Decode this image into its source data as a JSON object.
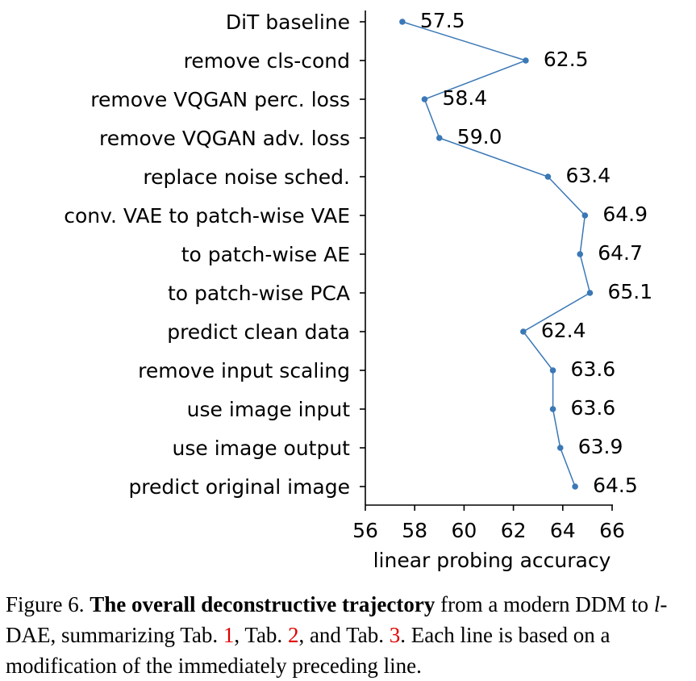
{
  "chart_data": {
    "type": "line",
    "orientation": "horizontal",
    "categories": [
      "DiT baseline",
      "remove cls-cond",
      "remove VQGAN perc. loss",
      "remove VQGAN adv. loss",
      "replace noise sched.",
      "conv. VAE to patch-wise VAE",
      "to patch-wise AE",
      "to patch-wise PCA",
      "predict clean data",
      "remove input scaling",
      "use image input",
      "use image output",
      "predict original image"
    ],
    "values": [
      57.5,
      62.5,
      58.4,
      59.0,
      63.4,
      64.9,
      64.7,
      65.1,
      62.4,
      63.6,
      63.6,
      63.9,
      64.5
    ],
    "value_labels": [
      "57.5",
      "62.5",
      "58.4",
      "59.0",
      "63.4",
      "64.9",
      "64.7",
      "65.1",
      "62.4",
      "63.6",
      "63.6",
      "63.9",
      "64.5"
    ],
    "xlabel": "linear probing accuracy",
    "ylabel": "",
    "xlim": [
      56,
      66
    ],
    "xticks": [
      "56",
      "58",
      "60",
      "62",
      "64",
      "66"
    ],
    "grid": false,
    "line_color": "#3a78b6"
  },
  "caption": {
    "fig_label": "Figure 6.",
    "bold_title": "The overall deconstructive trajectory",
    "text_a": "from a modern DDM to",
    "ital": "l",
    "text_b": "-DAE, summarizing Tab.",
    "ref1": "1",
    "text_c": ", Tab.",
    "ref2": "2",
    "text_d": ", and Tab.",
    "ref3": "3",
    "text_e": ". Each line is based on a modification of the immediately preceding line."
  }
}
